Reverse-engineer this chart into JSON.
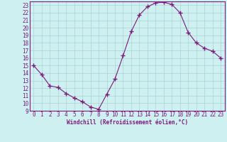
{
  "x": [
    0,
    1,
    2,
    3,
    4,
    5,
    6,
    7,
    8,
    9,
    10,
    11,
    12,
    13,
    14,
    15,
    16,
    17,
    18,
    19,
    20,
    21,
    22,
    23
  ],
  "y": [
    15,
    13.8,
    12.3,
    12.1,
    11.3,
    10.7,
    10.2,
    9.5,
    9.2,
    11.2,
    13.2,
    16.3,
    19.5,
    21.7,
    22.8,
    23.3,
    23.4,
    23.1,
    22.0,
    19.4,
    18.0,
    17.3,
    16.9,
    16.0
  ],
  "xlim": [
    -0.5,
    23.5
  ],
  "ylim": [
    9,
    23.5
  ],
  "yticks": [
    9,
    10,
    11,
    12,
    13,
    14,
    15,
    16,
    17,
    18,
    19,
    20,
    21,
    22,
    23
  ],
  "xticks": [
    0,
    1,
    2,
    3,
    4,
    5,
    6,
    7,
    8,
    9,
    10,
    11,
    12,
    13,
    14,
    15,
    16,
    17,
    18,
    19,
    20,
    21,
    22,
    23
  ],
  "xlabel": "Windchill (Refroidissement éolien,°C)",
  "line_color": "#7b1a7b",
  "marker": "+",
  "marker_size": 4,
  "bg_color": "#cff0f0",
  "grid_color": "#aad4d4",
  "tick_label_color": "#7b1a7b",
  "xlabel_color": "#7b1a7b",
  "spine_color": "#7b1a7b",
  "label_fontsize": 5.5,
  "tick_fontsize": 5.5
}
